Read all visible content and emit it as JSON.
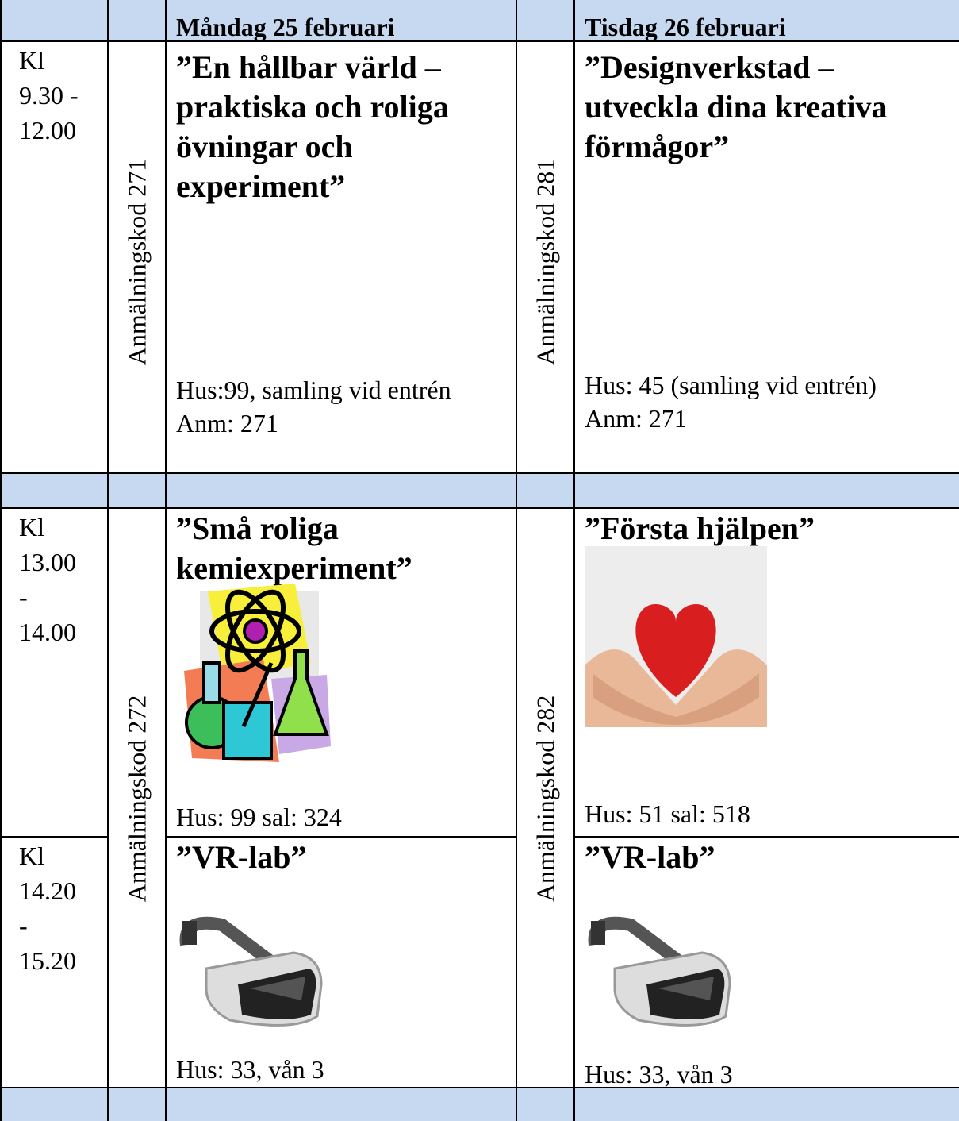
{
  "header": [
    "Måndag 25 februari",
    "Tisdag 26 februari"
  ],
  "time_slots": [
    [
      "Kl",
      "9.30 -",
      "12.00"
    ],
    [
      "Kl",
      "13.00",
      "-",
      "14.00"
    ],
    [
      "Kl",
      "14.20",
      "-",
      "15.20"
    ]
  ],
  "codes": [
    "Anmälningskod 271",
    "Anmälningskod 281",
    "Anmälningskod 272",
    "Anmälningskod 282"
  ],
  "sessions": [
    {
      "title": "”En hållbar värld – praktiska och roliga övningar och experiment”",
      "lines": [
        "Hus:99, samling vid entrén",
        "Anm: 271"
      ]
    },
    {
      "title": "”Designverkstad – utveckla dina kreativa förmågor”",
      "lines": [
        "Hus: 45 (samling vid entrén)",
        "Anm: 271"
      ]
    },
    {
      "title": "”Små roliga kemiexperiment”",
      "lines": [
        "Hus: 99  sal: 324"
      ]
    },
    {
      "title": "”Första hjälpen”",
      "lines": [
        "Hus: 51 sal: 518"
      ]
    },
    {
      "title": "”VR-lab”",
      "lines": [
        "Hus: 33, vån 3"
      ]
    },
    {
      "title": "”VR-lab”",
      "lines": [
        "Hus: 33, vån 3"
      ]
    }
  ]
}
